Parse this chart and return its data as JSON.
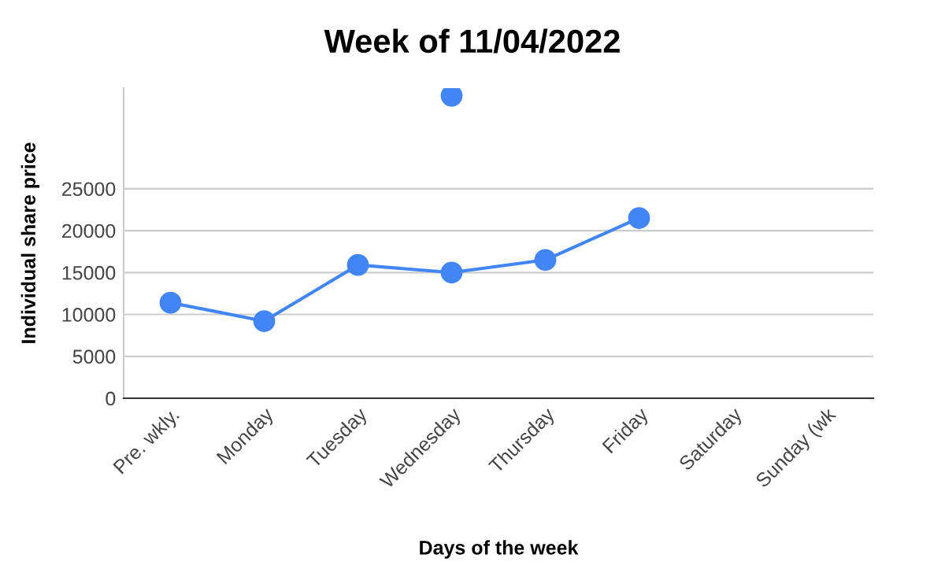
{
  "chart_data": {
    "type": "line",
    "title": "Week of 11/04/2022",
    "xlabel": "Days of the week",
    "ylabel": "Individual share price",
    "categories": [
      "Pre. wkly.",
      "Monday",
      "Tuesday",
      "Wednesday",
      "Thursday",
      "Friday",
      "Saturday",
      "Sunday (wk"
    ],
    "series": [
      {
        "color": "#4285f4",
        "values": [
          11400,
          9200,
          15900,
          15000,
          16500,
          21500,
          null,
          null
        ]
      },
      {
        "type": "scatter",
        "color": "#4285f4",
        "values": [
          null,
          null,
          null,
          36100,
          null,
          null,
          null,
          null
        ]
      }
    ],
    "ylim": [
      0,
      37000
    ],
    "yticks": [
      0,
      5000,
      10000,
      15000,
      20000,
      25000
    ],
    "grid": "y",
    "marker": "circle",
    "line_style": "solid",
    "legend": false
  }
}
